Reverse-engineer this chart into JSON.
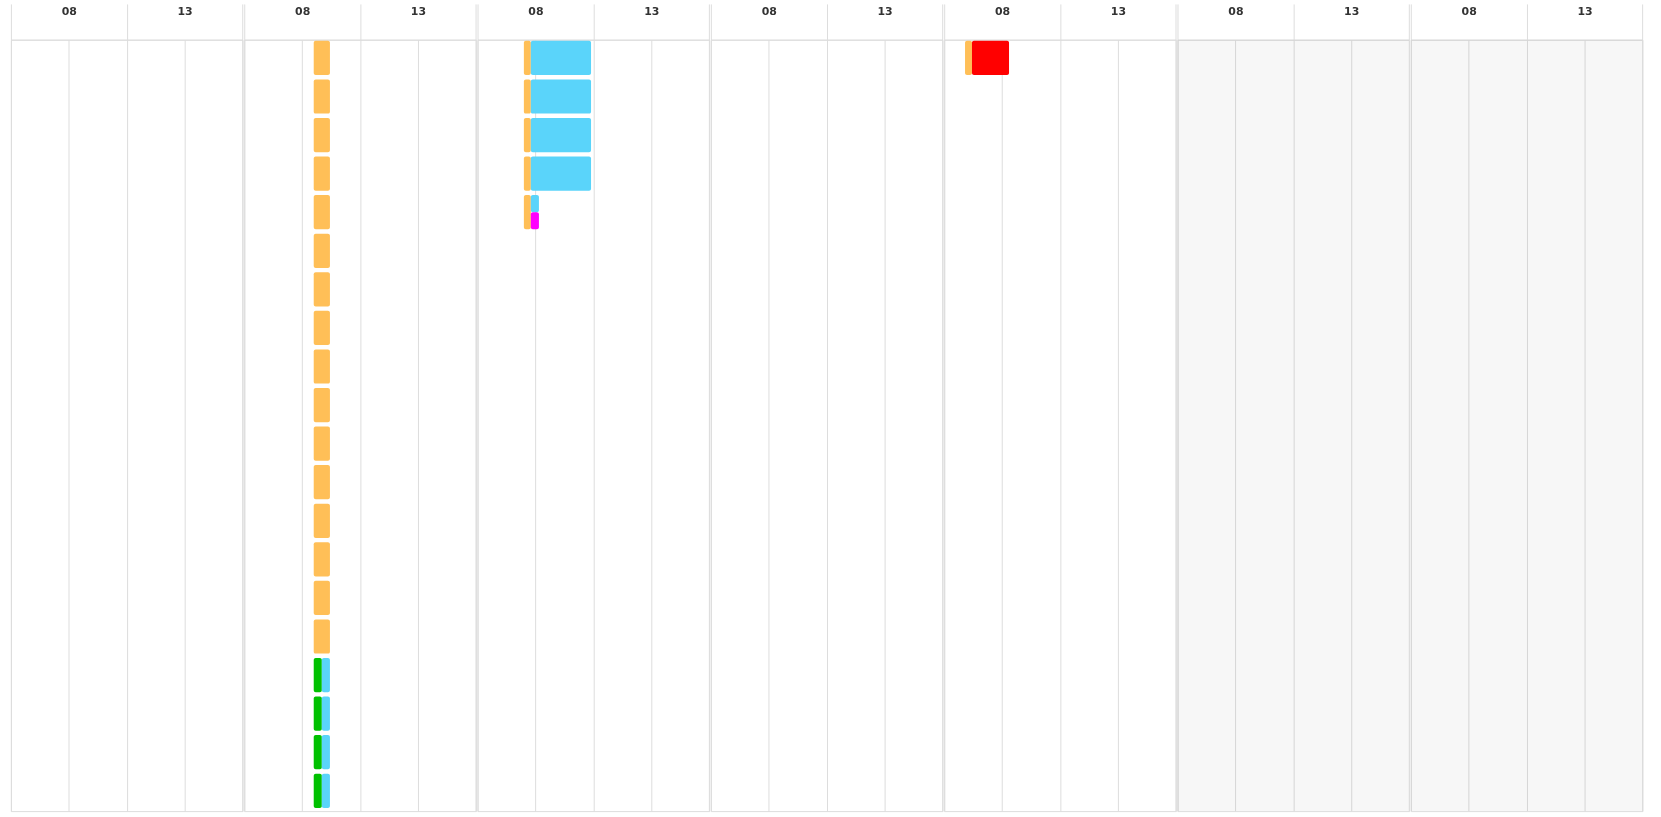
{
  "chart_data": [
    {
      "type": "bar",
      "orientation": "horizontal",
      "categories": [
        null,
        null,
        null,
        null,
        null,
        null,
        null,
        null,
        null,
        null,
        null,
        null,
        null,
        null,
        null,
        null,
        null,
        null,
        null,
        null
      ],
      "xlim": [
        5.5,
        15.5
      ],
      "xticks": [
        {
          "value": 5.5,
          "label": null
        },
        {
          "value": 8,
          "label": "08"
        },
        {
          "value": 10.5,
          "label": null
        },
        13,
        {
          "value": 15.5,
          "label": null
        }
      ],
      "grid": "x",
      "tick_labels": "x"
    },
    {
      "type": "bar",
      "orientation": "horizontal",
      "categories": [
        null,
        null,
        null,
        null,
        null,
        null,
        null,
        null,
        null,
        null,
        null,
        null,
        null,
        null,
        null,
        null,
        null,
        null,
        null,
        null
      ],
      "series": [
        {
          "color": "#ffbf57",
          "base": [
            8.5,
            8.5,
            8.5,
            8.5,
            8.5,
            8.5,
            8.5,
            8.5,
            8.5,
            8.5,
            8.5,
            8.5,
            8.5,
            8.5,
            8.5,
            8.5,
            null,
            null,
            null,
            null
          ],
          "values": [
            0.7,
            0.7,
            0.7,
            0.7,
            0.7,
            0.7,
            0.7,
            0.7,
            0.7,
            0.7,
            0.7,
            0.7,
            0.7,
            0.7,
            0.7,
            0.7,
            null,
            null,
            null,
            null
          ]
        },
        {
          "color": "#00c100",
          "base": [
            null,
            null,
            null,
            null,
            null,
            null,
            null,
            null,
            null,
            null,
            null,
            null,
            null,
            null,
            null,
            null,
            8.5,
            8.5,
            8.5,
            8.5
          ],
          "values": [
            null,
            null,
            null,
            null,
            null,
            null,
            null,
            null,
            null,
            null,
            null,
            null,
            null,
            null,
            null,
            null,
            0.35,
            0.35,
            0.35,
            0.35
          ]
        },
        {
          "color": "#5ad4fa",
          "base": [
            null,
            null,
            null,
            null,
            null,
            null,
            null,
            null,
            null,
            null,
            null,
            null,
            null,
            null,
            null,
            null,
            8.85,
            8.85,
            8.85,
            8.85
          ],
          "values": [
            null,
            null,
            null,
            null,
            null,
            null,
            null,
            null,
            null,
            null,
            null,
            null,
            null,
            null,
            null,
            null,
            0.35,
            0.35,
            0.35,
            0.35
          ]
        }
      ],
      "xlim": [
        5.5,
        15.5
      ],
      "xticks": [
        {
          "value": 5.5,
          "label": null
        },
        {
          "value": 8,
          "label": "08"
        },
        {
          "value": 10.5,
          "label": null
        },
        13,
        {
          "value": 15.5,
          "label": null
        }
      ],
      "grid": "x",
      "tick_labels": "x"
    },
    {
      "type": "bar",
      "orientation": "horizontal",
      "categories": [
        null,
        null,
        null,
        null,
        null,
        null,
        null,
        null,
        null,
        null,
        null,
        null,
        null,
        null,
        null,
        null,
        null,
        null,
        null,
        null
      ],
      "series": [
        {
          "color": "#ffbf57",
          "base": [
            7.5,
            7.5,
            7.5,
            7.5,
            7.5,
            null,
            null,
            null,
            null,
            null,
            null,
            null,
            null,
            null,
            null,
            null,
            null,
            null,
            null,
            null
          ],
          "values": [
            0.3,
            0.3,
            0.3,
            0.3,
            0.3,
            null,
            null,
            null,
            null,
            null,
            null,
            null,
            null,
            null,
            null,
            null,
            null,
            null,
            null,
            null
          ]
        },
        {
          "color": "#5ad4fa",
          "base": [
            7.8,
            7.8,
            7.8,
            7.8,
            7.8,
            null,
            null,
            null,
            null,
            null,
            null,
            null,
            null,
            null,
            null,
            null,
            null,
            null,
            null,
            null
          ],
          "values": [
            2.6,
            2.6,
            2.6,
            2.6,
            0.35,
            null,
            null,
            null,
            null,
            null,
            null,
            null,
            null,
            null,
            null,
            null,
            null,
            null,
            null,
            null
          ]
        },
        {
          "color": "#ff00ff",
          "base": [
            null,
            null,
            null,
            null,
            7.8,
            null,
            null,
            null,
            null,
            null,
            null,
            null,
            null,
            null,
            null,
            null,
            null,
            null,
            null,
            null
          ],
          "values": [
            null,
            null,
            null,
            null,
            0.35,
            null,
            null,
            null,
            null,
            null,
            null,
            null,
            null,
            null,
            null,
            null,
            null,
            null,
            null,
            null
          ]
        }
      ],
      "xlim": [
        5.5,
        15.5
      ],
      "xticks": [
        {
          "value": 5.5,
          "label": null
        },
        {
          "value": 8,
          "label": "08"
        },
        {
          "value": 10.5,
          "label": null
        },
        13,
        {
          "value": 15.5,
          "label": null
        }
      ],
      "grid": "x",
      "tick_labels": "x"
    },
    {
      "type": "bar",
      "orientation": "horizontal",
      "categories": [
        null,
        null,
        null,
        null,
        null,
        null,
        null,
        null,
        null,
        null,
        null,
        null,
        null,
        null,
        null,
        null,
        null,
        null,
        null,
        null
      ],
      "xlim": [
        5.5,
        15.5
      ],
      "xticks": [
        {
          "value": 5.5,
          "label": null
        },
        {
          "value": 8,
          "label": "08"
        },
        {
          "value": 10.5,
          "label": null
        },
        13,
        {
          "value": 15.5,
          "label": null
        }
      ],
      "grid": "x",
      "tick_labels": "x"
    },
    {
      "type": "bar",
      "orientation": "horizontal",
      "categories": [
        null,
        null,
        null,
        null,
        null,
        null,
        null,
        null,
        null,
        null,
        null,
        null,
        null,
        null,
        null,
        null,
        null,
        null,
        null,
        null
      ],
      "series": [
        {
          "color": "#ffbf57",
          "base": [
            6.4,
            null,
            null,
            null,
            null,
            null,
            null,
            null,
            null,
            null,
            null,
            null,
            null,
            null,
            null,
            null,
            null,
            null,
            null,
            null
          ],
          "values": [
            0.3,
            null,
            null,
            null,
            null,
            null,
            null,
            null,
            null,
            null,
            null,
            null,
            null,
            null,
            null,
            null,
            null,
            null,
            null,
            null
          ]
        },
        {
          "color": "#ff0000",
          "base": [
            6.7,
            null,
            null,
            null,
            null,
            null,
            null,
            null,
            null,
            null,
            null,
            null,
            null,
            null,
            null,
            null,
            null,
            null,
            null,
            null
          ],
          "values": [
            1.6,
            null,
            null,
            null,
            null,
            null,
            null,
            null,
            null,
            null,
            null,
            null,
            null,
            null,
            null,
            null,
            null,
            null,
            null,
            null
          ]
        }
      ],
      "xlim": [
        5.5,
        15.5
      ],
      "xticks": [
        {
          "value": 5.5,
          "label": null
        },
        {
          "value": 8,
          "label": "08"
        },
        {
          "value": 10.5,
          "label": null
        },
        13,
        {
          "value": 15.5,
          "label": null
        }
      ],
      "grid": "x",
      "tick_labels": "x"
    },
    {
      "type": "bar",
      "orientation": "horizontal",
      "categories": [
        null,
        null,
        null,
        null,
        null,
        null,
        null,
        null,
        null,
        null,
        null,
        null,
        null,
        null,
        null,
        null,
        null,
        null,
        null,
        null
      ],
      "xlim": [
        5.5,
        15.5
      ],
      "xticks": [
        {
          "value": 5.5,
          "label": null
        },
        {
          "value": 8,
          "label": "08"
        },
        {
          "value": 10.5,
          "label": null
        },
        13,
        {
          "value": 15.5,
          "label": null
        }
      ],
      "grid": "x",
      "tick_labels": "x",
      "bands": [
        {
          "axis": "x",
          "from": 5.5,
          "to": 15.5,
          "color": "#f7f7f7"
        }
      ]
    },
    {
      "type": "bar",
      "orientation": "horizontal",
      "categories": [
        null,
        null,
        null,
        null,
        null,
        null,
        null,
        null,
        null,
        null,
        null,
        null,
        null,
        null,
        null,
        null,
        null,
        null,
        null,
        null
      ],
      "xlim": [
        5.5,
        15.5
      ],
      "xticks": [
        {
          "value": 5.5,
          "label": null
        },
        {
          "value": 8,
          "label": "08"
        },
        {
          "value": 10.5,
          "label": null
        },
        13,
        {
          "value": 15.5,
          "label": null
        }
      ],
      "grid": "x",
      "tick_labels": "x",
      "bands": [
        {
          "axis": "x",
          "from": 5.5,
          "to": 15.5,
          "color": "#f7f7f7"
        }
      ]
    }
  ]
}
